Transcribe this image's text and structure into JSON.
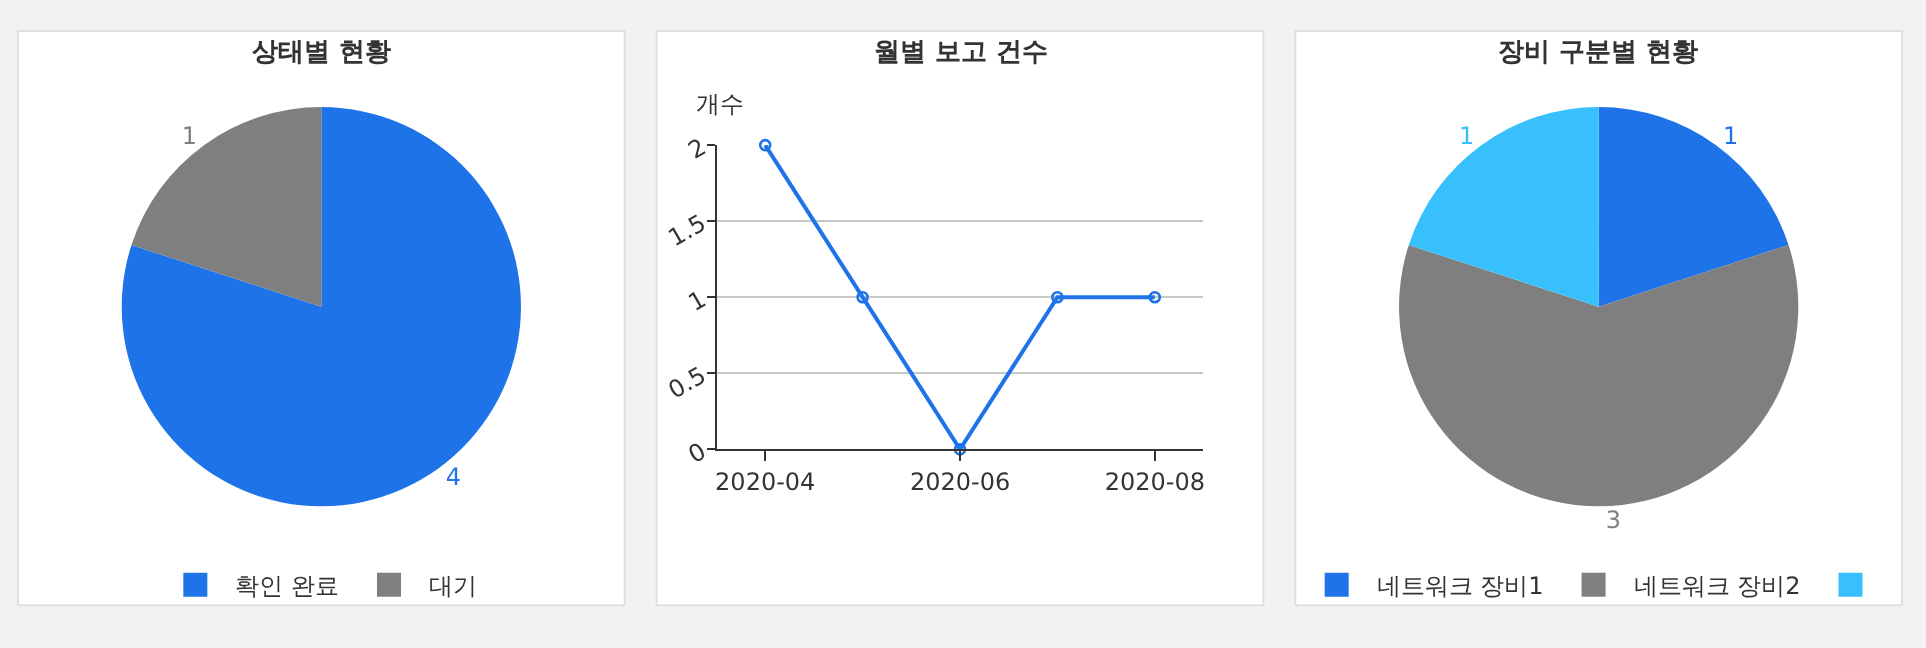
{
  "chart_data": [
    {
      "type": "pie",
      "title": "상태별 현황",
      "categories": [
        "확인 완료",
        "대기"
      ],
      "values": [
        4,
        1
      ],
      "colors": [
        "#1e73e8",
        "#7f7f7f"
      ],
      "data_labels": true,
      "legend": "bottom"
    },
    {
      "type": "line",
      "title": "월별 보고 건수",
      "ylabel": "개수",
      "categories": [
        "2020-04",
        null,
        "2020-06",
        null,
        "2020-08"
      ],
      "series": [
        {
          "color": "#1e73e8",
          "values": [
            2,
            1,
            0,
            1,
            1
          ]
        }
      ],
      "ylim": [
        0,
        2
      ],
      "yticks": [
        0,
        0.5,
        1,
        1.5,
        2
      ],
      "grid": "y",
      "marker": "circle"
    },
    {
      "type": "pie",
      "title": "장비 구분별 현황",
      "categories": [
        "네트워크 장비1",
        "네트워크 장비2",
        null
      ],
      "values": [
        1,
        3,
        1
      ],
      "colors": [
        "#1e73e8",
        "#7f7f7f",
        "#38c0fc"
      ],
      "data_labels": true,
      "legend": "bottom"
    }
  ]
}
